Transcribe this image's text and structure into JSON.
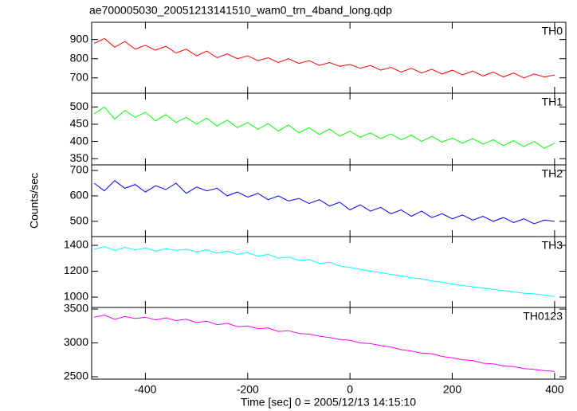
{
  "title": "ae700005030_20051213141510_wam0_trn_4band_long.qdp",
  "ylabel": "Counts/sec",
  "xlabel": "Time [sec] 0 = 2005/12/13 14:15:10",
  "chart_data": [
    {
      "type": "line",
      "xlim": [
        -505,
        422
      ],
      "xticks": [
        -400,
        -200,
        0,
        200,
        400
      ],
      "ylim": [
        620,
        990
      ],
      "yticks": [
        700,
        800,
        900
      ],
      "x": [
        -500,
        -480,
        -460,
        -440,
        -420,
        -400,
        -380,
        -360,
        -340,
        -320,
        -300,
        -280,
        -260,
        -240,
        -220,
        -200,
        -180,
        -160,
        -140,
        -120,
        -100,
        -80,
        -60,
        -40,
        -20,
        0,
        20,
        40,
        60,
        80,
        100,
        120,
        140,
        160,
        180,
        200,
        220,
        240,
        260,
        280,
        300,
        320,
        340,
        360,
        380,
        400
      ],
      "series": [
        {
          "name": "TH0",
          "color": "#ff0000",
          "values": [
            880,
            905,
            860,
            890,
            850,
            870,
            845,
            865,
            830,
            850,
            815,
            840,
            805,
            825,
            800,
            815,
            790,
            805,
            780,
            800,
            775,
            790,
            765,
            780,
            760,
            770,
            750,
            765,
            740,
            755,
            730,
            750,
            725,
            745,
            720,
            740,
            715,
            735,
            710,
            730,
            705,
            725,
            700,
            720,
            705,
            715
          ]
        }
      ]
    },
    {
      "type": "line",
      "xlim": [
        -505,
        422
      ],
      "xticks": [
        -400,
        -200,
        0,
        200,
        400
      ],
      "ylim": [
        332,
        540
      ],
      "yticks": [
        350,
        400,
        450,
        500
      ],
      "x": [
        -500,
        -480,
        -460,
        -440,
        -420,
        -400,
        -380,
        -360,
        -340,
        -320,
        -300,
        -280,
        -260,
        -240,
        -220,
        -200,
        -180,
        -160,
        -140,
        -120,
        -100,
        -80,
        -60,
        -40,
        -20,
        0,
        20,
        40,
        60,
        80,
        100,
        120,
        140,
        160,
        180,
        200,
        220,
        240,
        260,
        280,
        300,
        320,
        340,
        360,
        380,
        400
      ],
      "series": [
        {
          "name": "TH1",
          "color": "#00ff00",
          "values": [
            480,
            500,
            465,
            490,
            470,
            485,
            460,
            478,
            455,
            470,
            450,
            468,
            445,
            462,
            440,
            455,
            435,
            452,
            430,
            448,
            425,
            440,
            420,
            436,
            415,
            430,
            412,
            425,
            408,
            422,
            405,
            418,
            400,
            415,
            398,
            410,
            395,
            408,
            392,
            405,
            388,
            402,
            385,
            400,
            380,
            395
          ]
        }
      ]
    },
    {
      "type": "line",
      "xlim": [
        -505,
        422
      ],
      "xticks": [
        -400,
        -200,
        0,
        200,
        400
      ],
      "ylim": [
        440,
        722
      ],
      "yticks": [
        500,
        600,
        700
      ],
      "x": [
        -500,
        -480,
        -460,
        -440,
        -420,
        -400,
        -380,
        -360,
        -340,
        -320,
        -300,
        -280,
        -260,
        -240,
        -220,
        -200,
        -180,
        -160,
        -140,
        -120,
        -100,
        -80,
        -60,
        -40,
        -20,
        0,
        20,
        40,
        60,
        80,
        100,
        120,
        140,
        160,
        180,
        200,
        220,
        240,
        260,
        280,
        300,
        320,
        340,
        360,
        380,
        400
      ],
      "series": [
        {
          "name": "TH2",
          "color": "#0000ff",
          "values": [
            650,
            620,
            660,
            630,
            645,
            615,
            640,
            625,
            650,
            610,
            635,
            620,
            630,
            600,
            615,
            595,
            610,
            585,
            600,
            580,
            590,
            570,
            585,
            560,
            575,
            545,
            565,
            540,
            555,
            530,
            545,
            520,
            540,
            515,
            530,
            510,
            525,
            505,
            520,
            500,
            515,
            495,
            510,
            490,
            505,
            500
          ]
        }
      ]
    },
    {
      "type": "line",
      "xlim": [
        -505,
        422
      ],
      "xticks": [
        -400,
        -200,
        0,
        200,
        400
      ],
      "ylim": [
        920,
        1468
      ],
      "yticks": [
        1000,
        1200,
        1400
      ],
      "x": [
        -500,
        -480,
        -460,
        -440,
        -420,
        -400,
        -380,
        -360,
        -340,
        -320,
        -300,
        -280,
        -260,
        -240,
        -220,
        -200,
        -180,
        -160,
        -140,
        -120,
        -100,
        -80,
        -60,
        -40,
        -20,
        0,
        20,
        40,
        60,
        80,
        100,
        120,
        140,
        160,
        180,
        200,
        220,
        240,
        260,
        280,
        300,
        320,
        340,
        360,
        380,
        400
      ],
      "series": [
        {
          "name": "TH3",
          "color": "#00ffff",
          "values": [
            1370,
            1390,
            1360,
            1385,
            1365,
            1380,
            1355,
            1375,
            1360,
            1370,
            1350,
            1365,
            1340,
            1355,
            1330,
            1345,
            1315,
            1330,
            1300,
            1310,
            1285,
            1290,
            1260,
            1270,
            1240,
            1230,
            1215,
            1200,
            1190,
            1175,
            1165,
            1150,
            1140,
            1125,
            1115,
            1100,
            1090,
            1080,
            1070,
            1060,
            1050,
            1040,
            1030,
            1025,
            1015,
            1005
          ]
        }
      ]
    },
    {
      "type": "line",
      "xlim": [
        -505,
        422
      ],
      "xticks": [
        -400,
        -200,
        0,
        200,
        400
      ],
      "ylim": [
        2465,
        3524
      ],
      "yticks": [
        2500,
        3000,
        3500
      ],
      "x": [
        -500,
        -480,
        -460,
        -440,
        -420,
        -400,
        -380,
        -360,
        -340,
        -320,
        -300,
        -280,
        -260,
        -240,
        -220,
        -200,
        -180,
        -160,
        -140,
        -120,
        -100,
        -80,
        -60,
        -40,
        -20,
        0,
        20,
        40,
        60,
        80,
        100,
        120,
        140,
        160,
        180,
        200,
        220,
        240,
        260,
        280,
        300,
        320,
        340,
        360,
        380,
        400
      ],
      "series": [
        {
          "name": "TH0123",
          "color": "#ff00ff",
          "values": [
            3380,
            3410,
            3350,
            3390,
            3360,
            3380,
            3340,
            3370,
            3330,
            3350,
            3300,
            3320,
            3270,
            3290,
            3240,
            3250,
            3210,
            3220,
            3170,
            3180,
            3140,
            3130,
            3100,
            3080,
            3050,
            3040,
            3000,
            2990,
            2960,
            2940,
            2900,
            2880,
            2850,
            2840,
            2800,
            2780,
            2750,
            2740,
            2700,
            2690,
            2660,
            2650,
            2620,
            2610,
            2590,
            2580
          ]
        }
      ]
    }
  ]
}
